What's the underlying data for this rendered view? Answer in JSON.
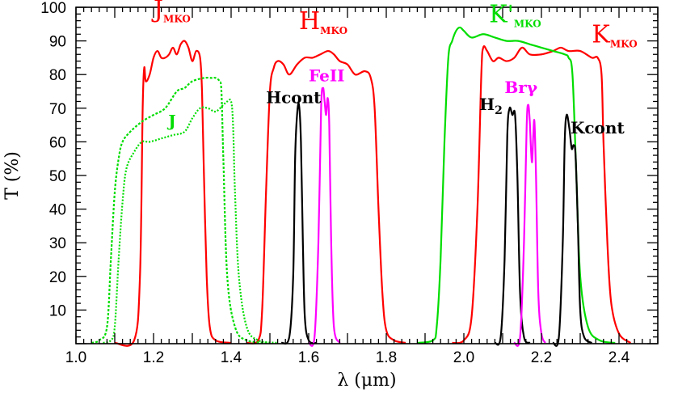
{
  "chart_data": {
    "type": "line",
    "xlabel": "λ (μm)",
    "ylabel": "T (%)",
    "xlim": [
      1.0,
      2.5
    ],
    "ylim": [
      0,
      100
    ],
    "x_ticks": [
      "1.0",
      "1.2",
      "1.4",
      "1.6",
      "1.8",
      "2.0",
      "2.2",
      "2.4"
    ],
    "y_ticks": [
      "10",
      "20",
      "30",
      "40",
      "50",
      "60",
      "70",
      "80",
      "90",
      "100"
    ],
    "grid": false,
    "series": [
      {
        "name": "JMKO",
        "color": "#ff0000",
        "dash": "solid",
        "points": [
          [
            1.1,
            0
          ],
          [
            1.15,
            1
          ],
          [
            1.165,
            20
          ],
          [
            1.172,
            70
          ],
          [
            1.176,
            82
          ],
          [
            1.18,
            78
          ],
          [
            1.19,
            80
          ],
          [
            1.2,
            85
          ],
          [
            1.21,
            87
          ],
          [
            1.22,
            85
          ],
          [
            1.23,
            85
          ],
          [
            1.24,
            86
          ],
          [
            1.25,
            88
          ],
          [
            1.26,
            86
          ],
          [
            1.27,
            89
          ],
          [
            1.28,
            90
          ],
          [
            1.29,
            88
          ],
          [
            1.3,
            84
          ],
          [
            1.31,
            87
          ],
          [
            1.32,
            85
          ],
          [
            1.325,
            75
          ],
          [
            1.33,
            50
          ],
          [
            1.337,
            20
          ],
          [
            1.345,
            5
          ],
          [
            1.36,
            1
          ],
          [
            1.4,
            0
          ]
        ]
      },
      {
        "name": "HMKO",
        "color": "#ff0000",
        "dash": "solid",
        "points": [
          [
            1.44,
            0
          ],
          [
            1.47,
            1
          ],
          [
            1.48,
            10
          ],
          [
            1.49,
            45
          ],
          [
            1.5,
            75
          ],
          [
            1.51,
            82
          ],
          [
            1.52,
            84
          ],
          [
            1.535,
            83
          ],
          [
            1.55,
            80
          ],
          [
            1.57,
            83
          ],
          [
            1.59,
            85
          ],
          [
            1.61,
            85
          ],
          [
            1.63,
            86
          ],
          [
            1.65,
            87
          ],
          [
            1.665,
            86
          ],
          [
            1.68,
            84
          ],
          [
            1.7,
            83
          ],
          [
            1.72,
            80
          ],
          [
            1.745,
            81
          ],
          [
            1.76,
            79
          ],
          [
            1.77,
            70
          ],
          [
            1.78,
            40
          ],
          [
            1.79,
            15
          ],
          [
            1.8,
            4
          ],
          [
            1.82,
            1
          ],
          [
            1.85,
            0
          ]
        ]
      },
      {
        "name": "KMKO",
        "color": "#ff0000",
        "dash": "solid",
        "points": [
          [
            1.97,
            0
          ],
          [
            2.0,
            1
          ],
          [
            2.02,
            8
          ],
          [
            2.035,
            40
          ],
          [
            2.045,
            80
          ],
          [
            2.05,
            88
          ],
          [
            2.06,
            87
          ],
          [
            2.075,
            84
          ],
          [
            2.09,
            85
          ],
          [
            2.11,
            84
          ],
          [
            2.13,
            85
          ],
          [
            2.15,
            88
          ],
          [
            2.17,
            86
          ],
          [
            2.2,
            86
          ],
          [
            2.23,
            87
          ],
          [
            2.25,
            88
          ],
          [
            2.27,
            87
          ],
          [
            2.3,
            87
          ],
          [
            2.33,
            85
          ],
          [
            2.345,
            85
          ],
          [
            2.355,
            80
          ],
          [
            2.36,
            60
          ],
          [
            2.37,
            30
          ],
          [
            2.38,
            12
          ],
          [
            2.4,
            3
          ],
          [
            2.43,
            0
          ]
        ]
      },
      {
        "name": "K'MKO",
        "color": "#00dd00",
        "dash": "solid",
        "points": [
          [
            1.88,
            0
          ],
          [
            1.92,
            1
          ],
          [
            1.93,
            5
          ],
          [
            1.94,
            25
          ],
          [
            1.95,
            60
          ],
          [
            1.96,
            85
          ],
          [
            1.97,
            90
          ],
          [
            1.98,
            93
          ],
          [
            1.99,
            94
          ],
          [
            2.0,
            93
          ],
          [
            2.02,
            91
          ],
          [
            2.05,
            92
          ],
          [
            2.08,
            91
          ],
          [
            2.11,
            90
          ],
          [
            2.14,
            90
          ],
          [
            2.17,
            89
          ],
          [
            2.2,
            88
          ],
          [
            2.23,
            87
          ],
          [
            2.26,
            86
          ],
          [
            2.27,
            85
          ],
          [
            2.28,
            80
          ],
          [
            2.29,
            50
          ],
          [
            2.3,
            20
          ],
          [
            2.32,
            5
          ],
          [
            2.35,
            1
          ],
          [
            2.39,
            0
          ]
        ]
      },
      {
        "name": "J",
        "color": "#00dd00",
        "dash": "dashed",
        "points": [
          [
            1.04,
            0
          ],
          [
            1.06,
            1
          ],
          [
            1.08,
            5
          ],
          [
            1.09,
            25
          ],
          [
            1.1,
            45
          ],
          [
            1.11,
            55
          ],
          [
            1.12,
            60
          ],
          [
            1.14,
            63
          ],
          [
            1.17,
            66
          ],
          [
            1.2,
            68
          ],
          [
            1.23,
            70
          ],
          [
            1.26,
            75
          ],
          [
            1.28,
            76
          ],
          [
            1.3,
            78
          ],
          [
            1.33,
            79
          ],
          [
            1.35,
            79
          ],
          [
            1.36,
            79
          ],
          [
            1.37,
            78
          ],
          [
            1.375,
            75
          ],
          [
            1.38,
            55
          ],
          [
            1.39,
            20
          ],
          [
            1.41,
            5
          ],
          [
            1.44,
            1
          ],
          [
            1.5,
            0
          ]
        ]
      },
      {
        "name": "J",
        "color": "#00dd00",
        "dash": "dotted",
        "points": [
          [
            1.07,
            0
          ],
          [
            1.09,
            1
          ],
          [
            1.1,
            5
          ],
          [
            1.11,
            25
          ],
          [
            1.12,
            42
          ],
          [
            1.13,
            52
          ],
          [
            1.15,
            57
          ],
          [
            1.17,
            60
          ],
          [
            1.19,
            60
          ],
          [
            1.22,
            61
          ],
          [
            1.25,
            62
          ],
          [
            1.28,
            63
          ],
          [
            1.3,
            67
          ],
          [
            1.32,
            70
          ],
          [
            1.34,
            70
          ],
          [
            1.36,
            69
          ],
          [
            1.38,
            71
          ],
          [
            1.39,
            72
          ],
          [
            1.4,
            72
          ],
          [
            1.405,
            65
          ],
          [
            1.41,
            45
          ],
          [
            1.42,
            20
          ],
          [
            1.44,
            5
          ],
          [
            1.47,
            1
          ],
          [
            1.52,
            0
          ]
        ]
      },
      {
        "name": "Hcont",
        "color": "#000000",
        "dash": "solid",
        "points": [
          [
            1.53,
            0
          ],
          [
            1.55,
            2
          ],
          [
            1.56,
            20
          ],
          [
            1.565,
            55
          ],
          [
            1.57,
            68
          ],
          [
            1.575,
            71
          ],
          [
            1.58,
            60
          ],
          [
            1.585,
            30
          ],
          [
            1.59,
            8
          ],
          [
            1.6,
            1
          ],
          [
            1.62,
            0
          ]
        ]
      },
      {
        "name": "FeII",
        "color": "#ff00ff",
        "dash": "solid",
        "points": [
          [
            1.6,
            0
          ],
          [
            1.615,
            2
          ],
          [
            1.625,
            30
          ],
          [
            1.632,
            70
          ],
          [
            1.637,
            76
          ],
          [
            1.641,
            72
          ],
          [
            1.645,
            68
          ],
          [
            1.649,
            73
          ],
          [
            1.653,
            65
          ],
          [
            1.658,
            30
          ],
          [
            1.665,
            5
          ],
          [
            1.68,
            0
          ]
        ]
      },
      {
        "name": "H2",
        "color": "#000000",
        "dash": "solid",
        "points": [
          [
            2.08,
            0
          ],
          [
            2.095,
            2
          ],
          [
            2.105,
            25
          ],
          [
            2.112,
            62
          ],
          [
            2.118,
            70
          ],
          [
            2.125,
            68
          ],
          [
            2.132,
            68
          ],
          [
            2.138,
            50
          ],
          [
            2.145,
            15
          ],
          [
            2.155,
            2
          ],
          [
            2.17,
            0
          ]
        ]
      },
      {
        "name": "Brγ",
        "color": "#ff00ff",
        "dash": "solid",
        "points": [
          [
            2.13,
            0
          ],
          [
            2.145,
            2
          ],
          [
            2.155,
            30
          ],
          [
            2.162,
            65
          ],
          [
            2.166,
            71
          ],
          [
            2.17,
            66
          ],
          [
            2.173,
            58
          ],
          [
            2.176,
            54
          ],
          [
            2.179,
            62
          ],
          [
            2.182,
            66
          ],
          [
            2.186,
            50
          ],
          [
            2.192,
            15
          ],
          [
            2.2,
            3
          ],
          [
            2.21,
            0
          ]
        ]
      },
      {
        "name": "Kcont",
        "color": "#000000",
        "dash": "solid",
        "points": [
          [
            2.23,
            0
          ],
          [
            2.245,
            2
          ],
          [
            2.255,
            30
          ],
          [
            2.26,
            60
          ],
          [
            2.265,
            68
          ],
          [
            2.272,
            64
          ],
          [
            2.278,
            58
          ],
          [
            2.283,
            59
          ],
          [
            2.288,
            56
          ],
          [
            2.294,
            35
          ],
          [
            2.3,
            10
          ],
          [
            2.31,
            2
          ],
          [
            2.33,
            0
          ]
        ]
      }
    ],
    "labels": [
      {
        "id": "jmko",
        "main": "J",
        "sub": "MKO",
        "color": "#ff0000",
        "x": 1.2,
        "y": 97,
        "big": true
      },
      {
        "id": "hmko",
        "main": "H",
        "sub": "MKO",
        "color": "#ff0000",
        "x": 1.575,
        "y": 93.5,
        "big": true
      },
      {
        "id": "kmko",
        "main": "K",
        "sub": "MKO",
        "color": "#ff0000",
        "x": 2.33,
        "y": 89.5,
        "big": true
      },
      {
        "id": "kprime",
        "main": "K'",
        "sub": "MKO",
        "color": "#00dd00",
        "x": 2.065,
        "y": 95.5,
        "big": true
      },
      {
        "id": "j",
        "main": "J",
        "sub": "",
        "color": "#00dd00",
        "x": 1.238,
        "y": 64.5,
        "big": false
      },
      {
        "id": "hcont",
        "main": "Hcont",
        "sub": "",
        "color": "#000000",
        "x": 1.49,
        "y": 71.5,
        "big": false
      },
      {
        "id": "feii",
        "main": "FeII",
        "sub": "",
        "color": "#ff00ff",
        "x": 1.6,
        "y": 78,
        "big": false
      },
      {
        "id": "h2",
        "main": "H",
        "sub": "2",
        "color": "#000000",
        "x": 2.04,
        "y": 69.5,
        "big": false
      },
      {
        "id": "brg",
        "main": "Brγ",
        "sub": "",
        "color": "#ff00ff",
        "x": 2.105,
        "y": 74.5,
        "big": false
      },
      {
        "id": "kcont",
        "main": "Kcont",
        "sub": "",
        "color": "#000000",
        "x": 2.275,
        "y": 62.5,
        "big": false
      }
    ]
  }
}
